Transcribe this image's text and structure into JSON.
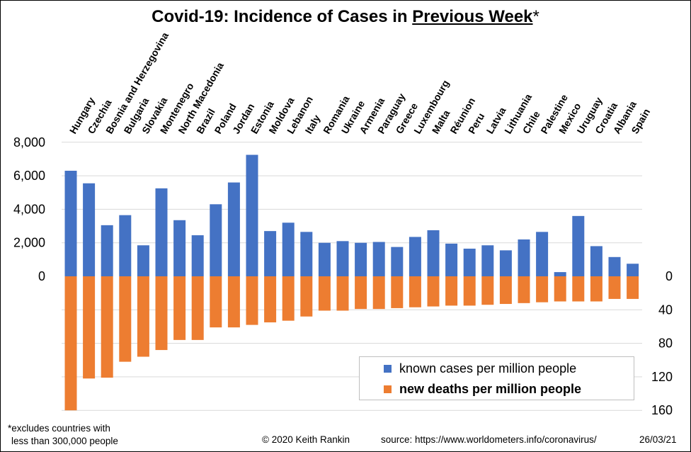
{
  "title": {
    "prefix": "Covid-19: Incidence of Cases in ",
    "underlined": "Previous Week",
    "suffix": "*"
  },
  "legend": {
    "cases_label": "known cases per million people",
    "deaths_label": "new deaths per million people"
  },
  "footer": {
    "note_line1": "*excludes  countries with",
    "note_line2": "less than 300,000 people",
    "copyright": "© 2020  Keith Rankin",
    "source": "source:  https://www.worldometers.info/coronavirus/",
    "date": "26/03/21"
  },
  "colors": {
    "cases": "#4472c4",
    "deaths": "#ed7d31",
    "grid": "#d9d9d9"
  },
  "chart_data": {
    "type": "bar",
    "title": "Covid-19: Incidence of Cases in Previous Week*",
    "categories": [
      "Hungary",
      "Czechia",
      "Bosnia and Herzegovina",
      "Bulgaria",
      "Slovakia",
      "Montenegro",
      "North Macedonia",
      "Brazil",
      "Poland",
      "Jordan",
      "Estonia",
      "Moldova",
      "Lebanon",
      "Italy",
      "Romania",
      "Ukraine",
      "Armenia",
      "Paraguay",
      "Greece",
      "Luxembourg",
      "Malta",
      "Réunion",
      "Peru",
      "Latvia",
      "Lithuania",
      "Chile",
      "Palestine",
      "Mexico",
      "Uruguay",
      "Croatia",
      "Albania",
      "Spain"
    ],
    "series": [
      {
        "name": "known cases per million people",
        "axis": "left",
        "values": [
          6300,
          5550,
          3050,
          3650,
          1850,
          5250,
          3350,
          2450,
          4300,
          5600,
          7250,
          2700,
          3200,
          2650,
          2000,
          2100,
          2000,
          2050,
          1750,
          2350,
          2750,
          1950,
          1650,
          1850,
          1550,
          2200,
          2650,
          250,
          3600,
          1800,
          1150,
          750
        ]
      },
      {
        "name": "new deaths per million people",
        "axis": "right",
        "values": [
          160,
          122,
          121,
          102,
          96,
          88,
          76,
          76,
          61,
          61,
          58,
          55,
          53,
          48,
          41,
          41,
          39,
          39,
          38,
          37,
          36,
          35,
          35,
          34,
          33,
          32,
          31,
          30,
          30,
          30,
          27,
          27
        ]
      }
    ],
    "left_axis": {
      "ticks": [
        "8,000",
        "6,000",
        "4,000",
        "2,000",
        "0"
      ],
      "range": [
        0,
        8000
      ]
    },
    "right_axis": {
      "ticks": [
        "0",
        "40",
        "80",
        "120",
        "160"
      ],
      "range": [
        0,
        160
      ],
      "inverted": true
    },
    "grid": true,
    "legend_position": "bottom-right"
  }
}
